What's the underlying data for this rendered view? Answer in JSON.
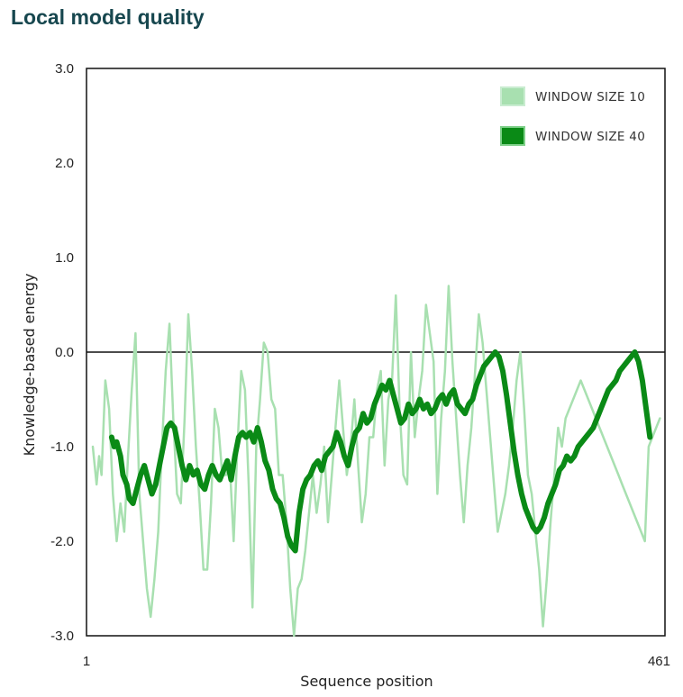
{
  "header": {
    "title": "Local model quality"
  },
  "chart_data": {
    "type": "line",
    "title": "Local model quality",
    "xlabel": "Sequence position",
    "ylabel": "Knowledge-based energy",
    "xlim": [
      1,
      461
    ],
    "ylim": [
      -3.0,
      3.0
    ],
    "x_ticks": [
      "1",
      "461"
    ],
    "y_ticks": [
      "3.0",
      "2.0",
      "1.0",
      "0.0",
      "-1.0",
      "-2.0",
      "-3.0"
    ],
    "reference_line": 0.0,
    "legend_position": "top-right",
    "colors": {
      "window10": "#a8e0b0",
      "window40": "#0a8a16",
      "zero_line": "#111111"
    },
    "series": [
      {
        "name": "WINDOW SIZE 10",
        "x": [
          6,
          9,
          11,
          13,
          16,
          19,
          22,
          25,
          28,
          31,
          34,
          37,
          40,
          43,
          46,
          49,
          52,
          55,
          58,
          61,
          64,
          67,
          70,
          73,
          76,
          79,
          82,
          85,
          88,
          91,
          94,
          97,
          100,
          103,
          106,
          109,
          112,
          115,
          118,
          121,
          124,
          127,
          130,
          133,
          136,
          139,
          142,
          145,
          148,
          151,
          154,
          157,
          160,
          163,
          166,
          169,
          172,
          175,
          178,
          181,
          184,
          187,
          190,
          193,
          196,
          199,
          202,
          205,
          208,
          211,
          214,
          217,
          220,
          223,
          226,
          229,
          232,
          235,
          238,
          241,
          244,
          247,
          250,
          253,
          256,
          259,
          262,
          265,
          268,
          271,
          274,
          277,
          280,
          283,
          286,
          289,
          292,
          295,
          298,
          301,
          304,
          307,
          310,
          313,
          316,
          319,
          322,
          325,
          328,
          331,
          334,
          337,
          340,
          343,
          346,
          349,
          352,
          355,
          358,
          361,
          364,
          367,
          370,
          373,
          376,
          379,
          382,
          385,
          388,
          391,
          394,
          397,
          400,
          403,
          406,
          409,
          412,
          415,
          418,
          421,
          424,
          427,
          430,
          433,
          436,
          439,
          442,
          445,
          448,
          451,
          454,
          457
        ],
        "values": [
          -1.0,
          -1.4,
          -1.1,
          -1.3,
          -0.3,
          -0.6,
          -1.5,
          -2.0,
          -1.6,
          -1.9,
          -1.1,
          -0.4,
          0.2,
          -1.5,
          -2.0,
          -2.5,
          -2.8,
          -2.4,
          -1.9,
          -1.0,
          -0.2,
          0.3,
          -0.7,
          -1.5,
          -1.6,
          -0.7,
          0.4,
          -0.2,
          -1.0,
          -1.6,
          -2.3,
          -2.3,
          -1.6,
          -0.6,
          -0.8,
          -1.3,
          -1.3,
          -1.2,
          -2.0,
          -1.0,
          -0.2,
          -0.4,
          -1.4,
          -2.7,
          -1.0,
          -0.5,
          0.1,
          0.0,
          -0.5,
          -0.6,
          -1.3,
          -1.3,
          -1.8,
          -2.5,
          -3.0,
          -2.5,
          -2.4,
          -2.1,
          -1.7,
          -1.3,
          -1.7,
          -1.4,
          -1.0,
          -1.8,
          -1.3,
          -0.8,
          -0.3,
          -0.8,
          -1.3,
          -1.0,
          -0.5,
          -1.2,
          -1.8,
          -1.5,
          -0.9,
          -0.9,
          -0.4,
          -0.2,
          -1.2,
          -0.5,
          -0.3,
          0.6,
          -0.6,
          -1.3,
          -1.4,
          0.0,
          -0.9,
          -0.5,
          -0.2,
          0.5,
          0.2,
          -0.1,
          -1.5,
          -0.7,
          -0.2,
          0.7,
          -0.1,
          -0.7,
          -1.3,
          -1.8,
          -1.2,
          -0.8,
          -0.2,
          0.4,
          0.1,
          -0.4,
          -0.9,
          -1.4,
          -1.9,
          -1.7,
          -1.5,
          -1.2,
          -0.8,
          -0.3,
          0.0,
          -0.6,
          -1.3,
          -1.5,
          -1.9,
          -2.3,
          -2.9,
          -2.4,
          -1.8,
          -1.3,
          -0.8,
          -1.0,
          -0.7,
          -0.6,
          -0.5,
          -0.4,
          -0.3,
          -0.4,
          -0.5,
          -0.6,
          -0.7,
          -0.8,
          -0.9,
          -1.0,
          -1.1,
          -1.2,
          -1.3,
          -1.4,
          -1.5,
          -1.6,
          -1.7,
          -1.8,
          -1.9,
          -2.0,
          -1.0,
          -0.9,
          -0.8,
          -0.7
        ]
      },
      {
        "name": "WINDOW SIZE 40",
        "x": [
          21,
          23,
          25,
          28,
          30,
          33,
          35,
          38,
          41,
          44,
          47,
          50,
          53,
          56,
          59,
          62,
          65,
          68,
          71,
          74,
          77,
          80,
          83,
          86,
          89,
          92,
          95,
          98,
          101,
          104,
          107,
          110,
          113,
          116,
          119,
          122,
          125,
          128,
          131,
          134,
          137,
          140,
          143,
          146,
          149,
          152,
          155,
          158,
          161,
          164,
          167,
          170,
          173,
          176,
          179,
          182,
          185,
          188,
          191,
          194,
          197,
          200,
          203,
          206,
          209,
          212,
          215,
          218,
          221,
          224,
          227,
          230,
          233,
          236,
          239,
          242,
          245,
          248,
          251,
          254,
          257,
          260,
          263,
          266,
          269,
          272,
          275,
          278,
          281,
          284,
          287,
          290,
          293,
          296,
          299,
          302,
          305,
          308,
          311,
          314,
          317,
          320,
          323,
          326,
          329,
          332,
          335,
          338,
          341,
          344,
          347,
          350,
          353,
          356,
          359,
          362,
          365,
          368,
          371,
          374,
          377,
          380,
          383,
          386,
          389,
          392,
          395,
          398,
          401,
          404,
          407,
          410,
          413,
          416,
          419,
          422,
          425,
          428,
          431,
          434,
          437,
          440,
          443,
          446,
          449
        ],
        "values": [
          -0.9,
          -1.0,
          -0.95,
          -1.1,
          -1.3,
          -1.4,
          -1.55,
          -1.6,
          -1.45,
          -1.3,
          -1.2,
          -1.35,
          -1.5,
          -1.4,
          -1.2,
          -1.0,
          -0.8,
          -0.75,
          -0.8,
          -1.0,
          -1.2,
          -1.35,
          -1.2,
          -1.3,
          -1.25,
          -1.4,
          -1.45,
          -1.3,
          -1.2,
          -1.3,
          -1.35,
          -1.25,
          -1.15,
          -1.35,
          -1.1,
          -0.9,
          -0.85,
          -0.9,
          -0.85,
          -0.95,
          -0.8,
          -0.95,
          -1.15,
          -1.25,
          -1.45,
          -1.55,
          -1.6,
          -1.75,
          -1.95,
          -2.05,
          -2.1,
          -1.7,
          -1.45,
          -1.35,
          -1.3,
          -1.2,
          -1.15,
          -1.25,
          -1.1,
          -1.05,
          -1.0,
          -0.85,
          -0.95,
          -1.1,
          -1.2,
          -1.0,
          -0.85,
          -0.8,
          -0.65,
          -0.75,
          -0.7,
          -0.55,
          -0.45,
          -0.35,
          -0.4,
          -0.3,
          -0.45,
          -0.6,
          -0.75,
          -0.7,
          -0.55,
          -0.65,
          -0.6,
          -0.5,
          -0.6,
          -0.55,
          -0.65,
          -0.6,
          -0.5,
          -0.45,
          -0.55,
          -0.45,
          -0.4,
          -0.55,
          -0.6,
          -0.65,
          -0.55,
          -0.5,
          -0.35,
          -0.25,
          -0.15,
          -0.1,
          -0.05,
          0.0,
          -0.05,
          -0.2,
          -0.45,
          -0.75,
          -1.05,
          -1.3,
          -1.5,
          -1.65,
          -1.75,
          -1.85,
          -1.9,
          -1.85,
          -1.75,
          -1.6,
          -1.5,
          -1.4,
          -1.25,
          -1.2,
          -1.1,
          -1.15,
          -1.1,
          -1.0,
          -0.95,
          -0.9,
          -0.85,
          -0.8,
          -0.7,
          -0.6,
          -0.5,
          -0.4,
          -0.35,
          -0.3,
          -0.2,
          -0.15,
          -0.1,
          -0.05,
          0.0,
          -0.1,
          -0.3,
          -0.6,
          -0.9
        ]
      }
    ]
  }
}
